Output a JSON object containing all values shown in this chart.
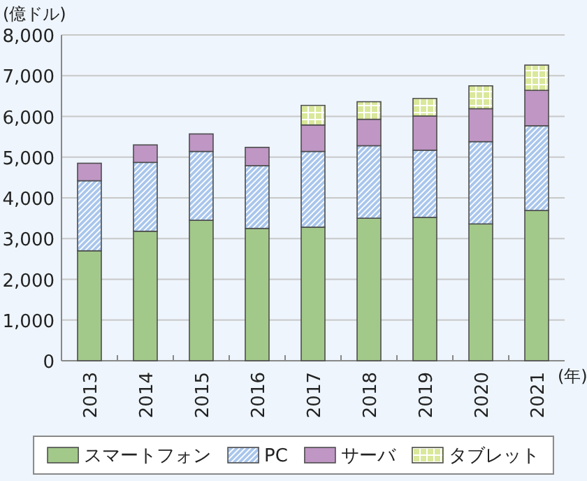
{
  "chart_data": {
    "type": "bar",
    "stacked": true,
    "ylabel": "(億ドル)",
    "xlabel": "(年)",
    "categories": [
      "2013",
      "2014",
      "2015",
      "2016",
      "2017",
      "2018",
      "2019",
      "2020",
      "2021"
    ],
    "series": [
      {
        "name": "スマートフォン",
        "color": "#a3c98a",
        "values": [
          2700,
          3180,
          3450,
          3250,
          3280,
          3500,
          3520,
          3360,
          3690
        ]
      },
      {
        "name": "PC",
        "color": "#a9c6ec",
        "values": [
          1720,
          1690,
          1690,
          1540,
          1860,
          1780,
          1650,
          2020,
          2080
        ]
      },
      {
        "name": "サーバ",
        "color": "#bf96c4",
        "values": [
          430,
          430,
          430,
          450,
          650,
          650,
          840,
          810,
          870
        ]
      },
      {
        "name": "タブレット",
        "color": "#d9e89a",
        "values": [
          0,
          0,
          0,
          0,
          480,
          430,
          430,
          560,
          620
        ]
      }
    ],
    "ylim": [
      0,
      8000
    ],
    "yticks": [
      0,
      {
        "value": 1000,
        "label": "1,000"
      },
      {
        "value": 2000,
        "label": "2,000"
      },
      {
        "value": 3000,
        "label": "3,000"
      },
      {
        "value": 4000,
        "label": "4,000"
      },
      {
        "value": 5000,
        "label": "5,000"
      },
      {
        "value": 6000,
        "label": "6,000"
      },
      {
        "value": 7000,
        "label": "7,000"
      },
      {
        "value": 8000,
        "label": "8,000"
      }
    ],
    "grid": "y",
    "legend": "bottom"
  }
}
